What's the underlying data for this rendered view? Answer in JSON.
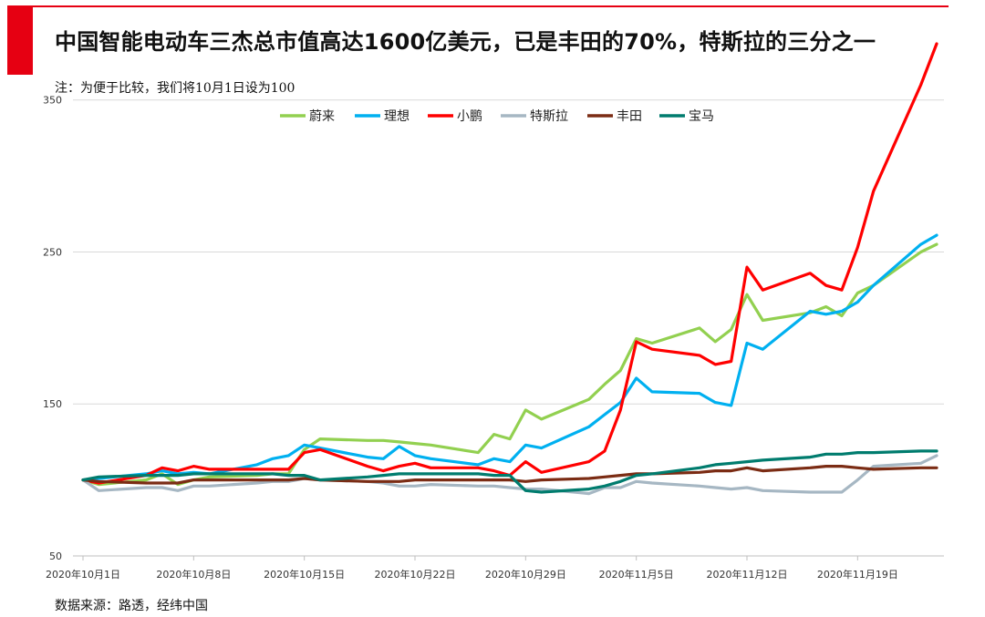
{
  "header": {
    "title": "中国智能电动车三杰总市值高达1600亿美元，已是丰田的70%，特斯拉的三分之一",
    "note": "注：为便于比较，我们将10月1日设为100",
    "source": "数据来源：路透，经纬中国",
    "accent_color": "#e60012"
  },
  "chart_data": {
    "type": "line",
    "ylim": [
      50,
      390
    ],
    "yticks": [
      50,
      150,
      250,
      350
    ],
    "xlim": [
      "2020-10-01",
      "2020-11-24"
    ],
    "xticks": [
      {
        "date": "2020-10-01",
        "label": "2020年10月1日"
      },
      {
        "date": "2020-10-08",
        "label": "2020年10月8日"
      },
      {
        "date": "2020-10-15",
        "label": "2020年10月15日"
      },
      {
        "date": "2020-10-22",
        "label": "2020年10月22日"
      },
      {
        "date": "2020-10-29",
        "label": "2020年10月29日"
      },
      {
        "date": "2020-11-05",
        "label": "2020年11月5日"
      },
      {
        "date": "2020-11-12",
        "label": "2020年11月12日"
      },
      {
        "date": "2020-11-19",
        "label": "2020年11月19日"
      }
    ],
    "grid": "horizontal",
    "legend_position": "top-center",
    "x": [
      "2020-10-01",
      "2020-10-02",
      "2020-10-05",
      "2020-10-06",
      "2020-10-07",
      "2020-10-08",
      "2020-10-09",
      "2020-10-12",
      "2020-10-13",
      "2020-10-14",
      "2020-10-15",
      "2020-10-16",
      "2020-10-19",
      "2020-10-20",
      "2020-10-21",
      "2020-10-22",
      "2020-10-23",
      "2020-10-26",
      "2020-10-27",
      "2020-10-28",
      "2020-10-29",
      "2020-10-30",
      "2020-11-02",
      "2020-11-03",
      "2020-11-04",
      "2020-11-05",
      "2020-11-06",
      "2020-11-09",
      "2020-11-10",
      "2020-11-11",
      "2020-11-12",
      "2020-11-13",
      "2020-11-16",
      "2020-11-17",
      "2020-11-18",
      "2020-11-19",
      "2020-11-20",
      "2020-11-23",
      "2020-11-24"
    ],
    "series": [
      {
        "name": "蔚来",
        "color": "#92d050",
        "values": [
          100,
          97,
          100,
          104,
          97,
          100,
          102,
          103,
          104,
          104,
          120,
          127,
          126,
          126,
          125,
          124,
          123,
          118,
          130,
          127,
          146,
          140,
          153,
          163,
          172,
          193,
          190,
          200,
          191,
          199,
          222,
          205,
          210,
          214,
          208,
          223,
          228,
          250,
          255
        ]
      },
      {
        "name": "理想",
        "color": "#00b0f0",
        "values": [
          100,
          101,
          104,
          106,
          104,
          105,
          104,
          110,
          114,
          116,
          123,
          121,
          115,
          114,
          122,
          116,
          114,
          110,
          114,
          112,
          123,
          121,
          135,
          143,
          151,
          167,
          158,
          157,
          151,
          149,
          190,
          186,
          211,
          209,
          211,
          217,
          228,
          255,
          261
        ]
      },
      {
        "name": "小鹏",
        "color": "#ff0000",
        "values": [
          100,
          98,
          103,
          108,
          106,
          109,
          107,
          107,
          107,
          107,
          118,
          120,
          109,
          106,
          109,
          111,
          108,
          108,
          106,
          103,
          112,
          105,
          112,
          119,
          146,
          191,
          186,
          182,
          176,
          178,
          240,
          225,
          236,
          228,
          225,
          253,
          290,
          360,
          387
        ]
      },
      {
        "name": "特斯拉",
        "color": "#a6b7c3",
        "values": [
          100,
          93,
          95,
          95,
          93,
          96,
          96,
          98,
          99,
          99,
          101,
          100,
          99,
          98,
          96,
          96,
          97,
          96,
          96,
          95,
          94,
          94,
          91,
          95,
          95,
          99,
          98,
          96,
          95,
          94,
          95,
          93,
          92,
          92,
          92,
          100,
          109,
          111,
          116
        ]
      },
      {
        "name": "丰田",
        "color": "#7b2c14",
        "values": [
          100,
          99,
          98,
          98,
          98,
          100,
          100,
          100,
          100,
          100,
          101,
          100,
          99,
          99,
          99,
          100,
          100,
          100,
          100,
          100,
          99,
          100,
          101,
          102,
          103,
          104,
          104,
          105,
          106,
          106,
          108,
          106,
          108,
          109,
          109,
          108,
          107,
          108,
          108
        ]
      },
      {
        "name": "宝马",
        "color": "#007c6e",
        "values": [
          100,
          102,
          103,
          103,
          103,
          104,
          104,
          104,
          104,
          103,
          103,
          100,
          102,
          103,
          104,
          104,
          104,
          104,
          103,
          103,
          93,
          92,
          94,
          96,
          99,
          103,
          104,
          108,
          110,
          111,
          112,
          113,
          115,
          117,
          117,
          118,
          118,
          119,
          119
        ]
      }
    ]
  }
}
